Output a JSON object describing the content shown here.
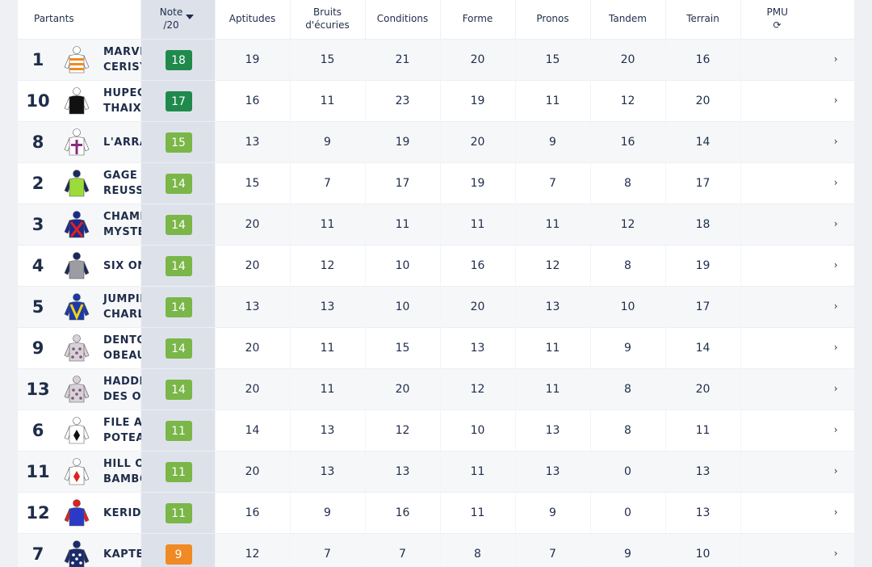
{
  "header": {
    "partants": "Partants",
    "note": "Note",
    "note_sub": "/20",
    "aptitudes": "Aptitudes",
    "bruits_l1": "Bruits",
    "bruits_l2": "d'écuries",
    "conditions": "Conditions",
    "forme": "Forme",
    "pronos": "Pronos",
    "tandem": "Tandem",
    "terrain": "Terrain",
    "pmu": "PMU",
    "refresh_icon": "⟳"
  },
  "colors": {
    "dark_green": "#1f8a4c",
    "green": "#7ab648",
    "orange": "#f08a24"
  },
  "rows": [
    {
      "num": "1",
      "name": "MARVEL DE CERISY",
      "note": "18",
      "badge_color": "#1f8a4c",
      "silk": "orange-white-hoops",
      "aptitudes": "19",
      "bruits": "15",
      "conditions": "21",
      "forme": "20",
      "pronos": "15",
      "tandem": "20",
      "terrain": "16"
    },
    {
      "num": "10",
      "name": "HUPECA DE THAIX",
      "note": "17",
      "badge_color": "#1f8a4c",
      "silk": "black-white",
      "aptitudes": "16",
      "bruits": "11",
      "conditions": "23",
      "forme": "19",
      "pronos": "11",
      "tandem": "12",
      "terrain": "20"
    },
    {
      "num": "8",
      "name": "L'ARRABIATA",
      "note": "15",
      "badge_color": "#7ab648",
      "silk": "white-purple-cross",
      "aptitudes": "13",
      "bruits": "9",
      "conditions": "19",
      "forme": "20",
      "pronos": "9",
      "tandem": "16",
      "terrain": "14"
    },
    {
      "num": "2",
      "name": "GAGE DE REUSSITE",
      "note": "14",
      "badge_color": "#7ab648",
      "silk": "green-navy",
      "aptitudes": "15",
      "bruits": "7",
      "conditions": "17",
      "forme": "19",
      "pronos": "7",
      "tandem": "8",
      "terrain": "17"
    },
    {
      "num": "3",
      "name": "CHAMPAGNE MYSTERY",
      "note": "14",
      "badge_color": "#7ab648",
      "silk": "navy-red-cross",
      "aptitudes": "20",
      "bruits": "11",
      "conditions": "11",
      "forme": "11",
      "pronos": "11",
      "tandem": "12",
      "terrain": "18"
    },
    {
      "num": "4",
      "name": "SIX ONE",
      "note": "14",
      "badge_color": "#7ab648",
      "silk": "grey-navy",
      "aptitudes": "20",
      "bruits": "12",
      "conditions": "10",
      "forme": "16",
      "pronos": "12",
      "tandem": "8",
      "terrain": "19"
    },
    {
      "num": "5",
      "name": "JUMPING CHARLIE",
      "note": "14",
      "badge_color": "#7ab648",
      "silk": "blue-yellow-v",
      "aptitudes": "13",
      "bruits": "13",
      "conditions": "10",
      "forme": "20",
      "pronos": "13",
      "tandem": "10",
      "terrain": "17"
    },
    {
      "num": "9",
      "name": "DENTOR DES OBEAUX",
      "note": "14",
      "badge_color": "#7ab648",
      "silk": "grey-spots",
      "aptitudes": "20",
      "bruits": "11",
      "conditions": "15",
      "forme": "13",
      "pronos": "11",
      "tandem": "9",
      "terrain": "14"
    },
    {
      "num": "13",
      "name": "HADDEXA DES OBEAUX",
      "note": "14",
      "badge_color": "#7ab648",
      "silk": "grey-spots",
      "aptitudes": "20",
      "bruits": "11",
      "conditions": "20",
      "forme": "12",
      "pronos": "11",
      "tandem": "8",
      "terrain": "20"
    },
    {
      "num": "6",
      "name": "FILE AU POTEAU",
      "note": "11",
      "badge_color": "#7ab648",
      "silk": "white-black-diamond",
      "aptitudes": "14",
      "bruits": "13",
      "conditions": "12",
      "forme": "10",
      "pronos": "13",
      "tandem": "8",
      "terrain": "11"
    },
    {
      "num": "11",
      "name": "HILL OF BAMBOO",
      "note": "11",
      "badge_color": "#7ab648",
      "silk": "white-red-diamond",
      "aptitudes": "20",
      "bruits": "13",
      "conditions": "13",
      "forme": "11",
      "pronos": "13",
      "tandem": "0",
      "terrain": "13"
    },
    {
      "num": "12",
      "name": "KERIDA",
      "note": "11",
      "badge_color": "#7ab648",
      "silk": "blue-red",
      "aptitudes": "16",
      "bruits": "9",
      "conditions": "16",
      "forme": "11",
      "pronos": "9",
      "tandem": "0",
      "terrain": "13"
    },
    {
      "num": "7",
      "name": "KAPTEEN",
      "note": "9",
      "badge_color": "#f08a24",
      "silk": "navy-white-stars",
      "aptitudes": "12",
      "bruits": "7",
      "conditions": "7",
      "forme": "8",
      "pronos": "7",
      "tandem": "9",
      "terrain": "10"
    }
  ]
}
